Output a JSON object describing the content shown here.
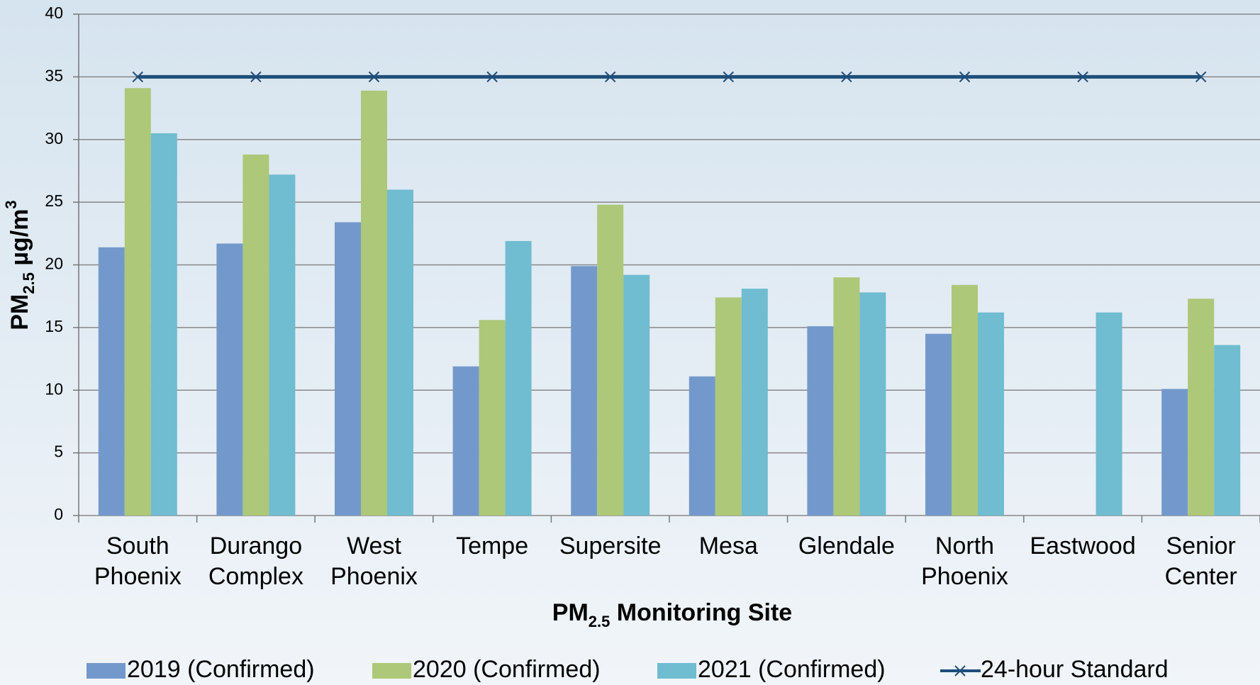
{
  "chart_data": {
    "type": "bar",
    "y_label": [
      "PM",
      "2.5",
      " µg/m",
      "3"
    ],
    "x_label": [
      "PM",
      "2.5",
      " Monitoring Site"
    ],
    "categories": [
      [
        "South",
        "Phoenix"
      ],
      [
        "Durango",
        "Complex"
      ],
      [
        "West",
        "Phoenix"
      ],
      [
        "Tempe"
      ],
      [
        "Supersite"
      ],
      [
        "Mesa"
      ],
      [
        "Glendale"
      ],
      [
        "North",
        "Phoenix"
      ],
      [
        "Eastwood"
      ],
      [
        "Senior",
        "Center"
      ]
    ],
    "series": [
      {
        "name": "2019 (Confirmed)",
        "type": "bar",
        "color": "#7399cc",
        "values": [
          21.4,
          21.7,
          23.4,
          11.9,
          19.9,
          11.1,
          15.1,
          14.5,
          null,
          10.1
        ]
      },
      {
        "name": "2020 (Confirmed)",
        "type": "bar",
        "color": "#adc878",
        "values": [
          34.1,
          28.8,
          33.9,
          15.6,
          24.8,
          17.4,
          19.0,
          18.4,
          null,
          17.3
        ]
      },
      {
        "name": "2021 (Confirmed)",
        "type": "bar",
        "color": "#70bcd1",
        "values": [
          30.5,
          27.2,
          26.0,
          21.9,
          19.2,
          18.1,
          17.8,
          16.2,
          16.2,
          13.6
        ]
      },
      {
        "name": "24-hour Standard",
        "type": "line",
        "color": "#1f4e79",
        "values": [
          35,
          35,
          35,
          35,
          35,
          35,
          35,
          35,
          35,
          35
        ]
      }
    ],
    "ylim": [
      0,
      40
    ],
    "yticks": [
      0,
      5,
      10,
      15,
      20,
      25,
      30,
      35,
      40
    ],
    "grid": true,
    "legend": "bottom"
  }
}
